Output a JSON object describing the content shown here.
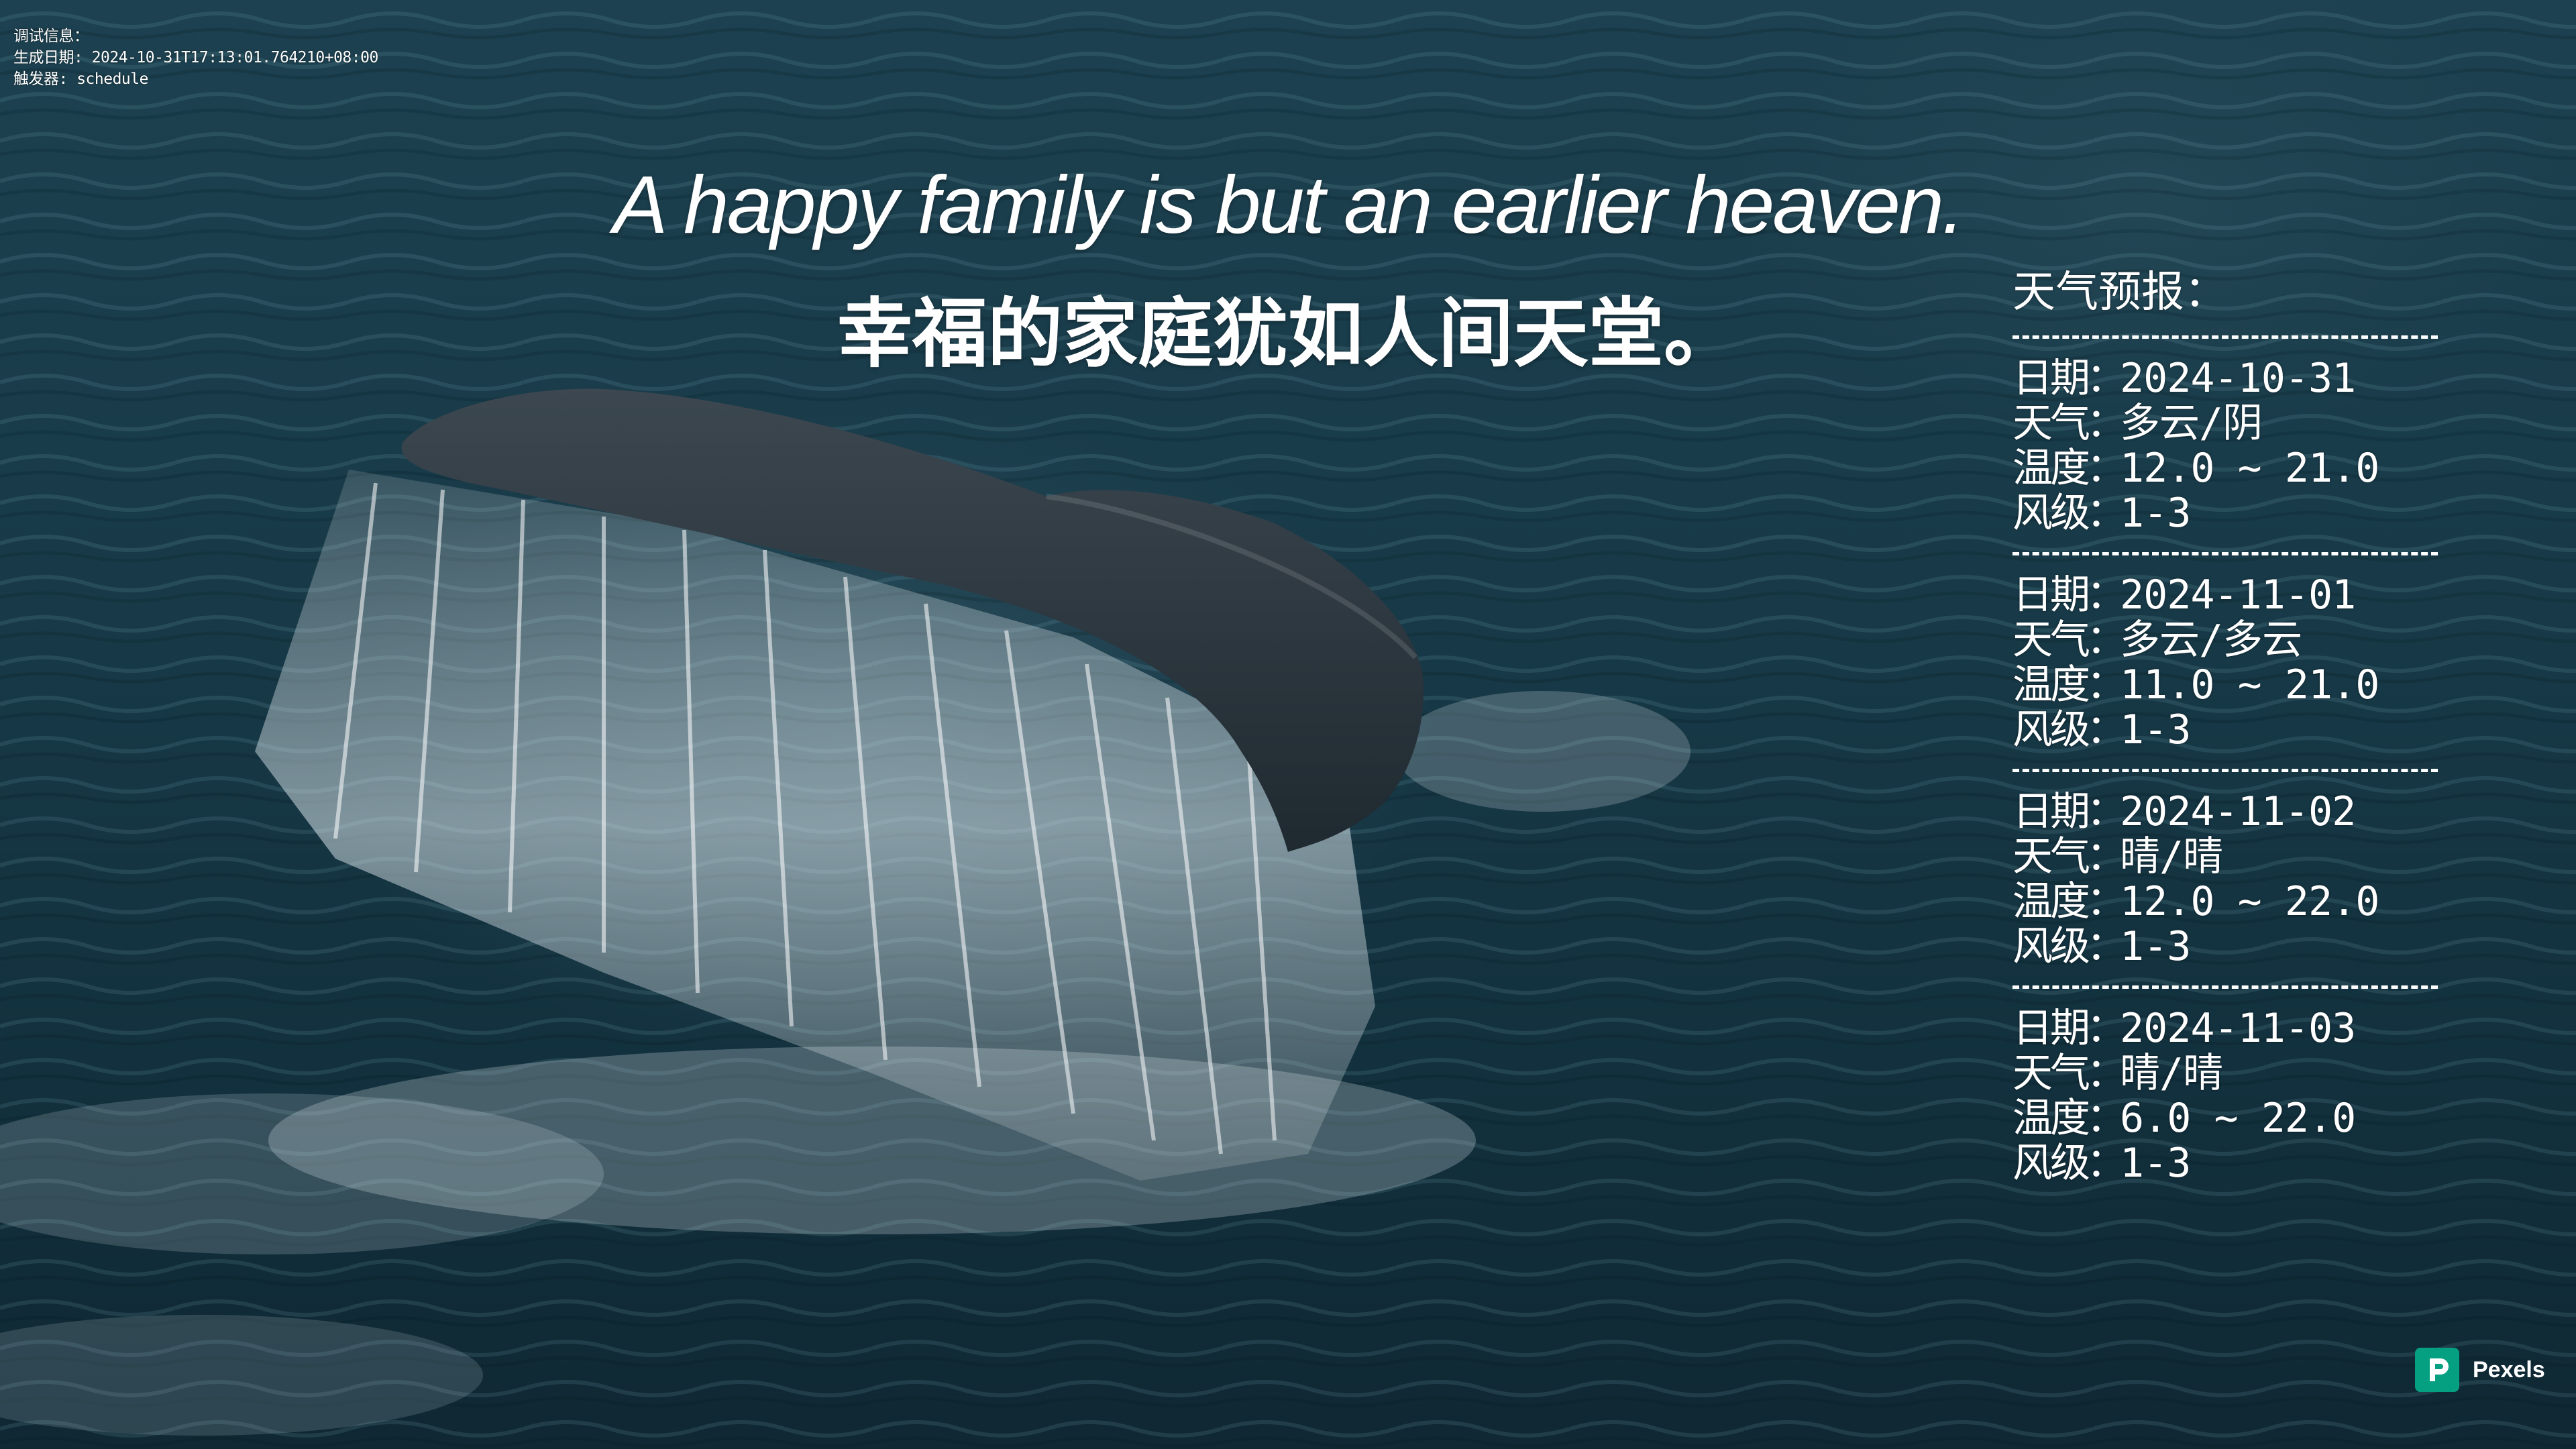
{
  "debug": {
    "line1": "调试信息：",
    "line2": "生成日期: 2024-10-31T17:13:01.764210+08:00",
    "line3": "触发器: schedule"
  },
  "quote": {
    "en": "A happy family is but an earlier heaven.",
    "zh": "幸福的家庭犹如人间天堂。"
  },
  "forecast": {
    "title": "天气预报：",
    "divider": "-------------------------------",
    "labels": {
      "date": "日期",
      "weather": "天气",
      "temp": "温度",
      "wind": "风级",
      "sep": "："
    },
    "days": [
      {
        "date": "2024-10-31",
        "weather": "多云/阴",
        "temp": "12.0 ~ 21.0",
        "wind": "1-3"
      },
      {
        "date": "2024-11-01",
        "weather": "多云/多云",
        "temp": "11.0 ~ 21.0",
        "wind": "1-3"
      },
      {
        "date": "2024-11-02",
        "weather": "晴/晴",
        "temp": "12.0 ~ 22.0",
        "wind": "1-3"
      },
      {
        "date": "2024-11-03",
        "weather": "晴/晴",
        "temp": "6.0 ~ 22.0",
        "wind": "1-3"
      }
    ]
  },
  "watermark": {
    "brand": "Pexels",
    "logo_color": "#05a081"
  },
  "wallpaper": {
    "subject": "whale-tail-icon",
    "water_color": "#183a48"
  }
}
